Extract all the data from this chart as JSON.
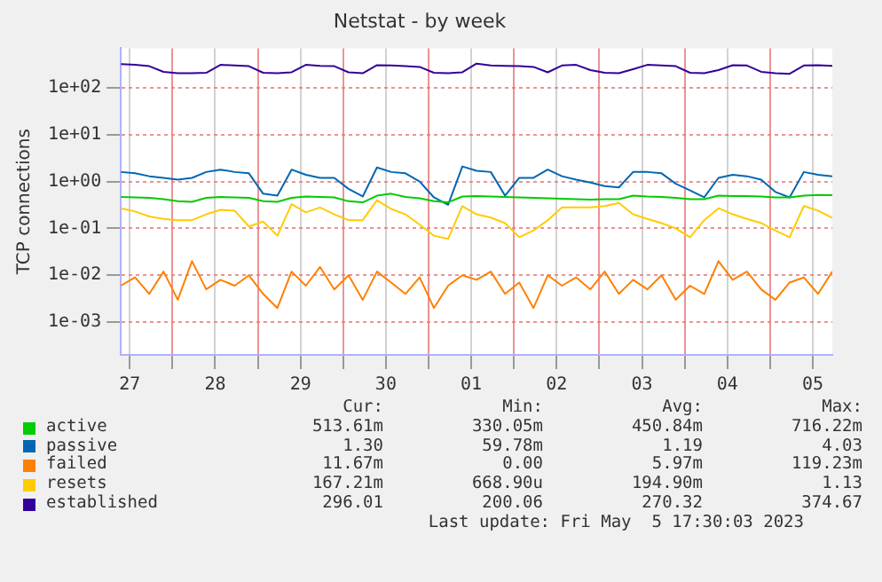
{
  "chart_data": {
    "type": "line",
    "title": "Netstat - by week",
    "ylabel": "TCP connections",
    "log": "y",
    "grid": true,
    "legend": "bottom",
    "x": [
      "--04-27T09:30",
      "--04-27T13:30",
      "--04-27T17:30",
      "--04-27T21:30",
      "--04-28T01:30",
      "--04-28T05:30",
      "--04-28T09:30",
      "--04-28T13:30",
      "--04-28T17:30",
      "--04-28T21:30",
      "--04-29T01:30",
      "--04-29T05:30",
      "--04-29T09:30",
      "--04-29T13:30",
      "--04-29T17:30",
      "--04-29T21:30",
      "--04-30T01:30",
      "--04-30T05:30",
      "--04-30T09:30",
      "--04-30T13:30",
      "--04-30T17:30",
      "--04-30T21:30",
      "--05-01T01:30",
      "--05-01T05:30",
      "--05-01T09:30",
      "--05-01T13:30",
      "--05-01T17:30",
      "--05-01T21:30",
      "--05-02T01:30",
      "--05-02T05:30",
      "--05-02T09:30",
      "--05-02T13:30",
      "--05-02T17:30",
      "--05-02T21:30",
      "--05-03T01:30",
      "--05-03T05:30",
      "--05-03T09:30",
      "--05-03T13:30",
      "--05-03T17:30",
      "--05-03T21:30",
      "--05-04T01:30",
      "--05-04T05:30",
      "--05-04T09:30",
      "--05-04T13:30",
      "--05-04T17:30",
      "--05-04T21:30",
      "--05-05T01:30",
      "--05-05T05:30",
      "--05-05T09:30",
      "--05-05T13:30",
      "--05-05T17:30"
    ],
    "xlim": [
      "--04-27T09:30",
      "--05-05T17:30"
    ],
    "xticks": [
      {
        "value": "--04-27T12:00",
        "label": "27"
      },
      {
        "value": "--04-28T00:00",
        "label": null
      },
      {
        "value": "--04-28T12:00",
        "label": "28"
      },
      {
        "value": "--04-29T00:00",
        "label": null
      },
      {
        "value": "--04-29T12:00",
        "label": "29"
      },
      {
        "value": "--04-30T00:00",
        "label": null
      },
      {
        "value": "--04-30T12:00",
        "label": "30"
      },
      {
        "value": "--05-01T00:00",
        "label": null
      },
      {
        "value": "--05-01T12:00",
        "label": "01"
      },
      {
        "value": "--05-02T00:00",
        "label": null
      },
      {
        "value": "--05-02T12:00",
        "label": "02"
      },
      {
        "value": "--05-03T00:00",
        "label": null
      },
      {
        "value": "--05-03T12:00",
        "label": "03"
      },
      {
        "value": "--05-04T00:00",
        "label": null
      },
      {
        "value": "--05-04T12:00",
        "label": "04"
      },
      {
        "value": "--05-05T00:00",
        "label": null
      },
      {
        "value": "--05-05T12:00",
        "label": "05"
      }
    ],
    "ylim": [
      0.0002,
      700
    ],
    "yticks": [
      {
        "value": 0.001,
        "label": "1e-03"
      },
      {
        "value": 0.01,
        "label": "1e-02"
      },
      {
        "value": 0.1,
        "label": "1e-01"
      },
      {
        "value": 1,
        "label": "1e+00"
      },
      {
        "value": 10,
        "label": "1e+01"
      },
      {
        "value": 100,
        "label": "1e+02"
      }
    ],
    "series": [
      {
        "name": "active",
        "color": "#00cc00",
        "values": [
          0.47,
          0.46,
          0.45,
          0.42,
          0.38,
          0.37,
          0.45,
          0.47,
          0.46,
          0.45,
          0.38,
          0.37,
          0.45,
          0.48,
          0.47,
          0.46,
          0.38,
          0.36,
          0.5,
          0.55,
          0.47,
          0.44,
          0.38,
          0.36,
          0.48,
          0.49,
          0.48,
          0.47,
          0.46,
          0.45,
          0.44,
          0.43,
          0.42,
          0.41,
          0.42,
          0.42,
          0.5,
          0.48,
          0.47,
          0.45,
          0.42,
          0.42,
          0.5,
          0.49,
          0.49,
          0.48,
          0.46,
          0.46,
          0.5,
          0.52,
          0.51
        ]
      },
      {
        "name": "passive",
        "color": "#0066b3",
        "values": [
          1.6,
          1.5,
          1.3,
          1.2,
          1.1,
          1.2,
          1.6,
          1.8,
          1.6,
          1.5,
          0.55,
          0.5,
          1.8,
          1.4,
          1.2,
          1.2,
          0.7,
          0.48,
          2.0,
          1.6,
          1.5,
          1.0,
          0.46,
          0.32,
          2.1,
          1.7,
          1.6,
          0.5,
          1.2,
          1.2,
          1.8,
          1.3,
          1.1,
          0.95,
          0.8,
          0.75,
          1.6,
          1.6,
          1.5,
          0.9,
          0.65,
          0.46,
          1.2,
          1.4,
          1.3,
          1.1,
          0.6,
          0.46,
          1.6,
          1.4,
          1.3
        ]
      },
      {
        "name": "failed",
        "color": "#ff8000",
        "values": [
          0.006,
          0.009,
          0.004,
          0.012,
          0.003,
          0.02,
          0.005,
          0.008,
          0.006,
          0.01,
          0.004,
          0.002,
          0.012,
          0.006,
          0.015,
          0.005,
          0.01,
          0.003,
          0.012,
          0.007,
          0.004,
          0.009,
          0.002,
          0.006,
          0.01,
          0.008,
          0.012,
          0.004,
          0.007,
          0.002,
          0.01,
          0.006,
          0.009,
          0.005,
          0.012,
          0.004,
          0.008,
          0.005,
          0.01,
          0.003,
          0.006,
          0.004,
          0.02,
          0.008,
          0.012,
          0.005,
          0.003,
          0.007,
          0.009,
          0.004,
          0.012
        ]
      },
      {
        "name": "resets",
        "color": "#ffcc00",
        "values": [
          0.27,
          0.23,
          0.18,
          0.16,
          0.15,
          0.15,
          0.2,
          0.25,
          0.24,
          0.11,
          0.14,
          0.07,
          0.33,
          0.22,
          0.28,
          0.2,
          0.15,
          0.15,
          0.4,
          0.26,
          0.2,
          0.12,
          0.07,
          0.06,
          0.3,
          0.2,
          0.17,
          0.13,
          0.065,
          0.09,
          0.15,
          0.28,
          0.28,
          0.28,
          0.3,
          0.35,
          0.2,
          0.16,
          0.13,
          0.1,
          0.065,
          0.15,
          0.27,
          0.2,
          0.16,
          0.13,
          0.09,
          0.065,
          0.3,
          0.24,
          0.167
        ]
      },
      {
        "name": "established",
        "color": "#330099",
        "values": [
          320,
          310,
          290,
          220,
          205,
          205,
          210,
          310,
          300,
          290,
          210,
          205,
          215,
          310,
          295,
          290,
          215,
          205,
          305,
          300,
          290,
          280,
          210,
          205,
          215,
          330,
          300,
          295,
          290,
          280,
          215,
          300,
          310,
          240,
          210,
          205,
          250,
          310,
          300,
          290,
          210,
          205,
          240,
          305,
          300,
          220,
          205,
          200,
          300,
          305,
          296
        ]
      }
    ],
    "annotations": [
      "Cur:",
      "Min:",
      "Avg:",
      "Max:",
      "513.61m",
      "330.05m",
      "450.84m",
      "716.22m",
      "1.30",
      "59.78m",
      "1.19",
      "4.03",
      "11.67m",
      "0.00",
      "5.97m",
      "119.23m",
      "167.21m",
      "668.90u",
      "194.90m",
      "1.13",
      "296.01",
      "200.06",
      "270.32",
      "374.67",
      "Last update: Fri May  5 17:30:03 2023"
    ]
  }
}
